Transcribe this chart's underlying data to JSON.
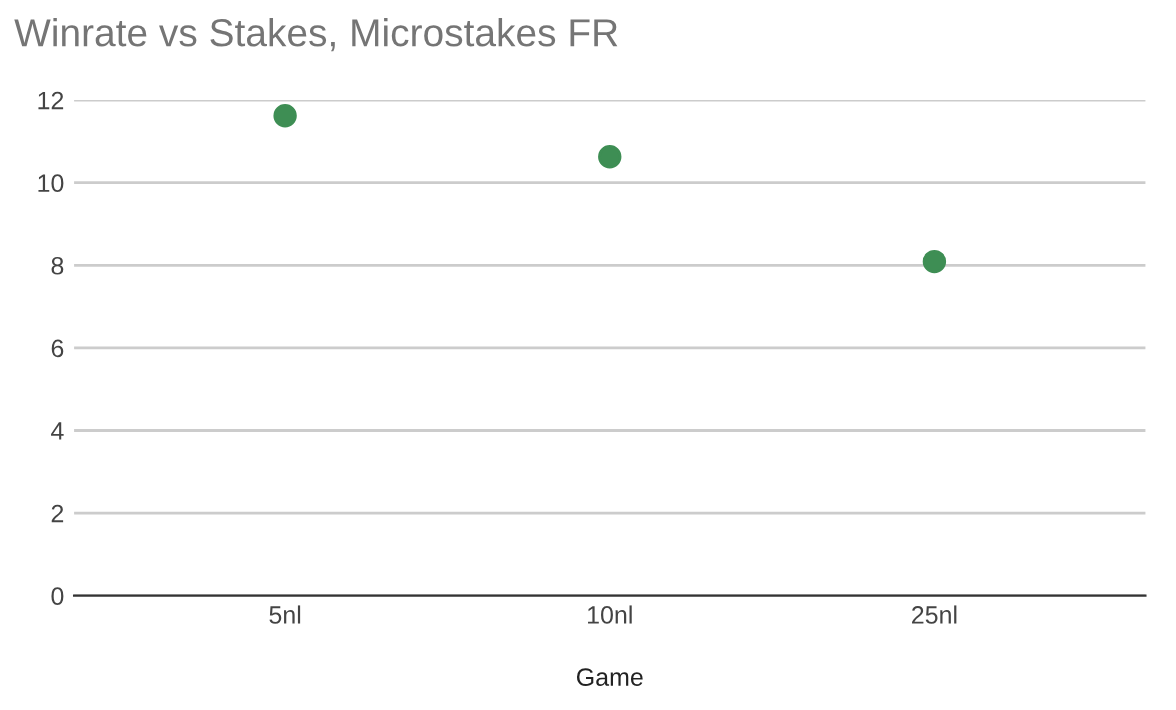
{
  "chart_data": {
    "type": "scatter",
    "title": "Winrate vs Stakes, Microstakes FR",
    "xlabel": "Game",
    "categories": [
      "5nl",
      "10nl",
      "25nl"
    ],
    "series": [
      {
        "color": "#3e8e54",
        "values": [
          11.62,
          10.63,
          8.09
        ]
      }
    ],
    "ylim": [
      0,
      12
    ],
    "yticks": [
      0,
      2,
      4,
      6,
      8,
      10,
      12
    ],
    "grid": "y",
    "marker": "circle",
    "legend": false
  }
}
